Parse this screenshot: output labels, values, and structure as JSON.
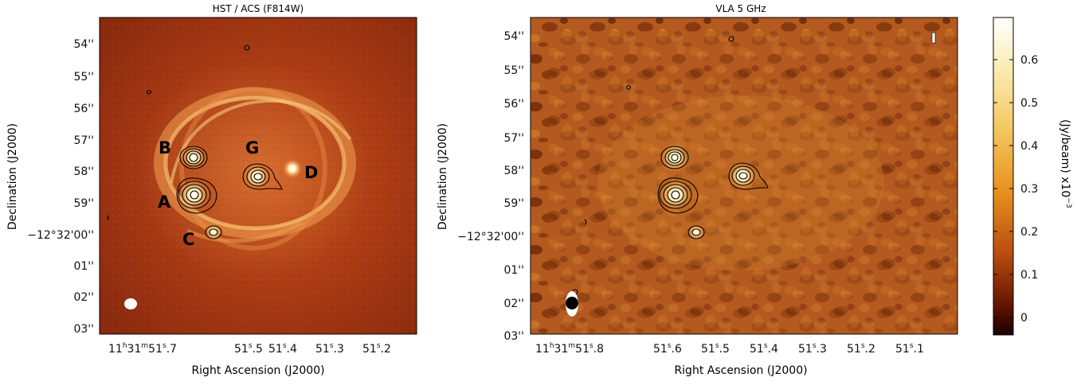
{
  "left_panel": {
    "title": "HST / ACS (F814W)",
    "xlabel": "Right Ascension (J2000)",
    "ylabel": "Declination (J2000)",
    "xticks": [
      {
        "h": "11",
        "m": "31",
        "s": "51",
        "f": ".7",
        "first": true
      },
      {
        "s": "51",
        "f": ".5"
      },
      {
        "s": "51",
        "f": ".4"
      },
      {
        "s": "51",
        "f": ".3"
      },
      {
        "s": "51",
        "f": ".2"
      }
    ],
    "yticks": [
      "54''",
      "55''",
      "56''",
      "57''",
      "58''",
      "59''",
      "−12°32'00''",
      "01''",
      "02''",
      "03''"
    ],
    "image_labels": [
      "B",
      "G",
      "D",
      "A",
      "C"
    ]
  },
  "right_panel": {
    "title": "VLA 5 GHz",
    "xlabel": "Right Ascension (J2000)",
    "ylabel": "Declination (J2000)",
    "xticks": [
      {
        "h": "11",
        "m": "31",
        "s": "51",
        "f": ".8",
        "first": true
      },
      {
        "s": "51",
        "f": ".6"
      },
      {
        "s": "51",
        "f": ".5"
      },
      {
        "s": "51",
        "f": ".4"
      },
      {
        "s": "51",
        "f": ".3"
      },
      {
        "s": "51",
        "f": ".2"
      },
      {
        "s": "51",
        "f": ".1"
      }
    ],
    "yticks": [
      "54''",
      "55''",
      "56''",
      "57''",
      "58''",
      "59''",
      "−12°32'00''",
      "01''",
      "02''",
      "03''"
    ]
  },
  "colorbar": {
    "ticks": [
      "0.6",
      "0.5",
      "0.4",
      "0.3",
      "0.2",
      "0.1",
      "0"
    ],
    "label": "(Jy/beam)  x10",
    "exponent": "−3"
  }
}
